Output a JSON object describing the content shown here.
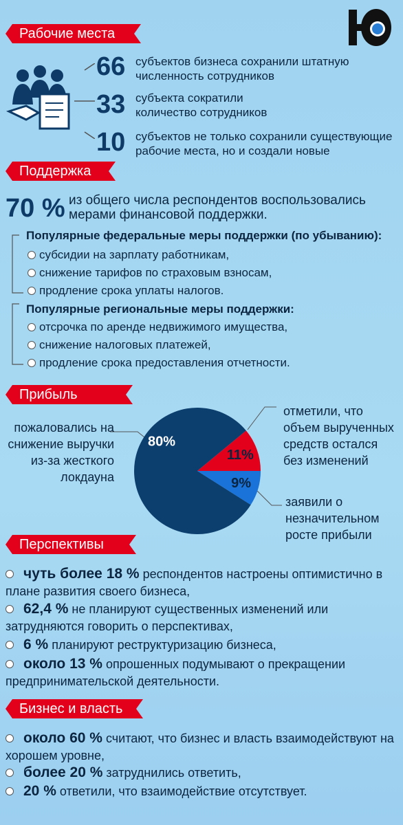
{
  "jobs": {
    "title": "Рабочие места",
    "items": [
      {
        "number": 66,
        "text": "субъектов бизнеса сохранили штатную численность сотрудников"
      },
      {
        "number": 33,
        "text": "субъекта сократили количество сотрудников"
      },
      {
        "number": 10,
        "text": "субъектов не только сохранили существующие рабочие места, но и создали новые"
      }
    ]
  },
  "support": {
    "title": "Поддержка",
    "percent": "70 %",
    "text": "из общего числа респондентов воспользовались мерами финансовой поддержки.",
    "federal": {
      "heading": "Популярные федеральные меры поддержки (по убыванию):",
      "items": [
        "субсидии на зарплату работникам,",
        "снижение тарифов по страховым взносам,",
        "продление срока уплаты налогов."
      ]
    },
    "regional": {
      "heading": "Популярные региональные меры поддержки:",
      "items": [
        "отсрочка по аренде недвижимого имущества,",
        "снижение налоговых платежей,",
        "продление срока предоставления отчетности."
      ]
    }
  },
  "profit": {
    "title": "Прибыль"
  },
  "chart_data": {
    "type": "pie",
    "categories": [
      "пожаловались на снижение выручки из-за жесткого локдауна",
      "отметили, что объем вырученных средств остался без изменений",
      "заявили о незначительном росте прибыли"
    ],
    "values": [
      80,
      11,
      9
    ],
    "value_labels": [
      "80%",
      "11%",
      "9%"
    ],
    "colors": [
      "#0d3f6e",
      "#e3001b",
      "#1a73d9"
    ]
  },
  "perspectives": {
    "title": "Перспективы",
    "items": [
      {
        "bold": "чуть более 18 %",
        "text": "респондентов настроены оптимистично в плане развития своего бизнеса,"
      },
      {
        "bold": "62,4 %",
        "text": "не планируют существенных изменений или затрудняются говорить о перспективах,"
      },
      {
        "bold": "6 %",
        "text": "планируют реструктуризацию бизнеса,"
      },
      {
        "bold": "около 13 %",
        "text": "опрошенных подумывают о прекращении предпринимательской деятельности."
      }
    ]
  },
  "business": {
    "title": "Бизнес и власть",
    "items": [
      {
        "bold": "около 60 %",
        "text": "считают, что бизнес и власть взаимодействуют на хорошем уровне,"
      },
      {
        "bold": "более 20 %",
        "text": "затруднились ответить,"
      },
      {
        "bold": "20 %",
        "text": "ответили, что взаимодействие отсутствует."
      }
    ]
  }
}
